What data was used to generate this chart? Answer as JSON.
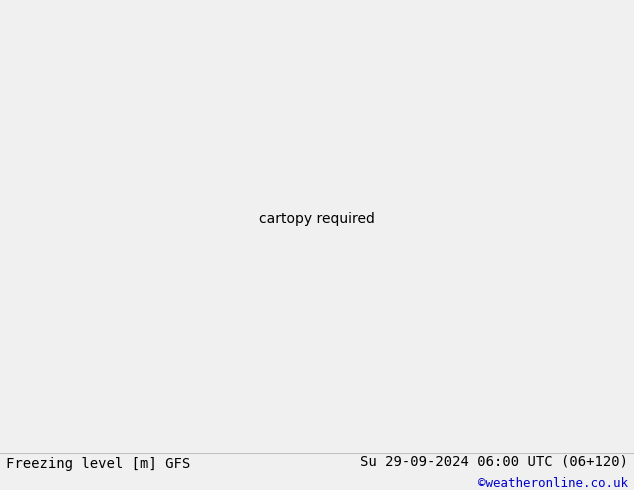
{
  "title_left": "Freezing level [m] GFS",
  "title_right": "Su 29-09-2024 06:00 UTC (06+120)",
  "copyright": "©weatheronline.co.uk",
  "footer_color": "#000000",
  "copyright_color": "#0000cc",
  "fontsize_footer": 10,
  "fontsize_copyright": 9,
  "lon_min": -40,
  "lon_max": 80,
  "lat_min": -45,
  "lat_max": 45,
  "contour_colors": {
    "1000": "#0000ff",
    "1200": "#0055ff",
    "1400": "#00aaff",
    "1600": "#00ccdd",
    "1800": "#00dd88",
    "2000": "#00aa00",
    "2200": "#44aa00",
    "2400": "#88aa00",
    "2600": "#ccaa00",
    "2800": "#ffaa00",
    "3000": "#ff8800",
    "3200": "#ff5500",
    "3400": "#ff2200",
    "3600": "#cc0000",
    "3800": "#990000",
    "4000": "#770000",
    "4200": "#880022",
    "4400": "#660011",
    "4600": "#440011",
    "4800": "#220008",
    "5000": "#110004",
    "5200": "#080002"
  }
}
